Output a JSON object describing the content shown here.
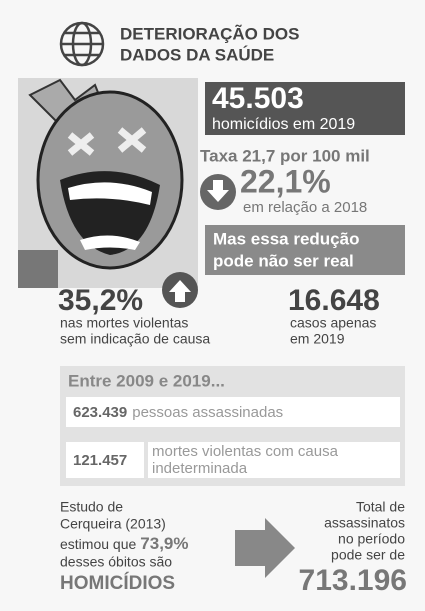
{
  "header": {
    "title_lines": [
      "DETERIORAÇÃO DOS",
      "DADOS DA SAÚDE"
    ]
  },
  "homicides": {
    "number": "45.503",
    "label": "homicídios em 2019"
  },
  "rate": "Taxa 21,7 por 100 mil",
  "change": {
    "number": "22,1%",
    "label": "em relação a 2018"
  },
  "warning": [
    "Mas essa redução",
    "pode não ser real"
  ],
  "undetermined_increase": {
    "number": "35,2%",
    "label_lines": [
      "nas mortes violentas",
      "sem indicação de causa"
    ]
  },
  "cases": {
    "number": "16.648",
    "label_lines": [
      "casos apenas",
      "em 2019"
    ]
  },
  "period": {
    "title": "Entre 2009 e 2019...",
    "rows": [
      {
        "number": "623.439",
        "label_lines": [
          "pessoas assassinadas"
        ]
      },
      {
        "number": "121.457",
        "label_lines": [
          "mortes violentas com causa",
          "indeterminada"
        ]
      }
    ]
  },
  "study": {
    "lines": [
      "Estudo de",
      "Cerqueira (2013)",
      "estimou que"
    ],
    "highlight": "73,9%",
    "lines_after": [
      "desses óbitos são"
    ],
    "emphasis": "HOMICÍDIOS"
  },
  "total": {
    "lines": [
      "Total de",
      "assassinatos",
      "no período",
      "pode ser de"
    ],
    "number": "713.196"
  }
}
